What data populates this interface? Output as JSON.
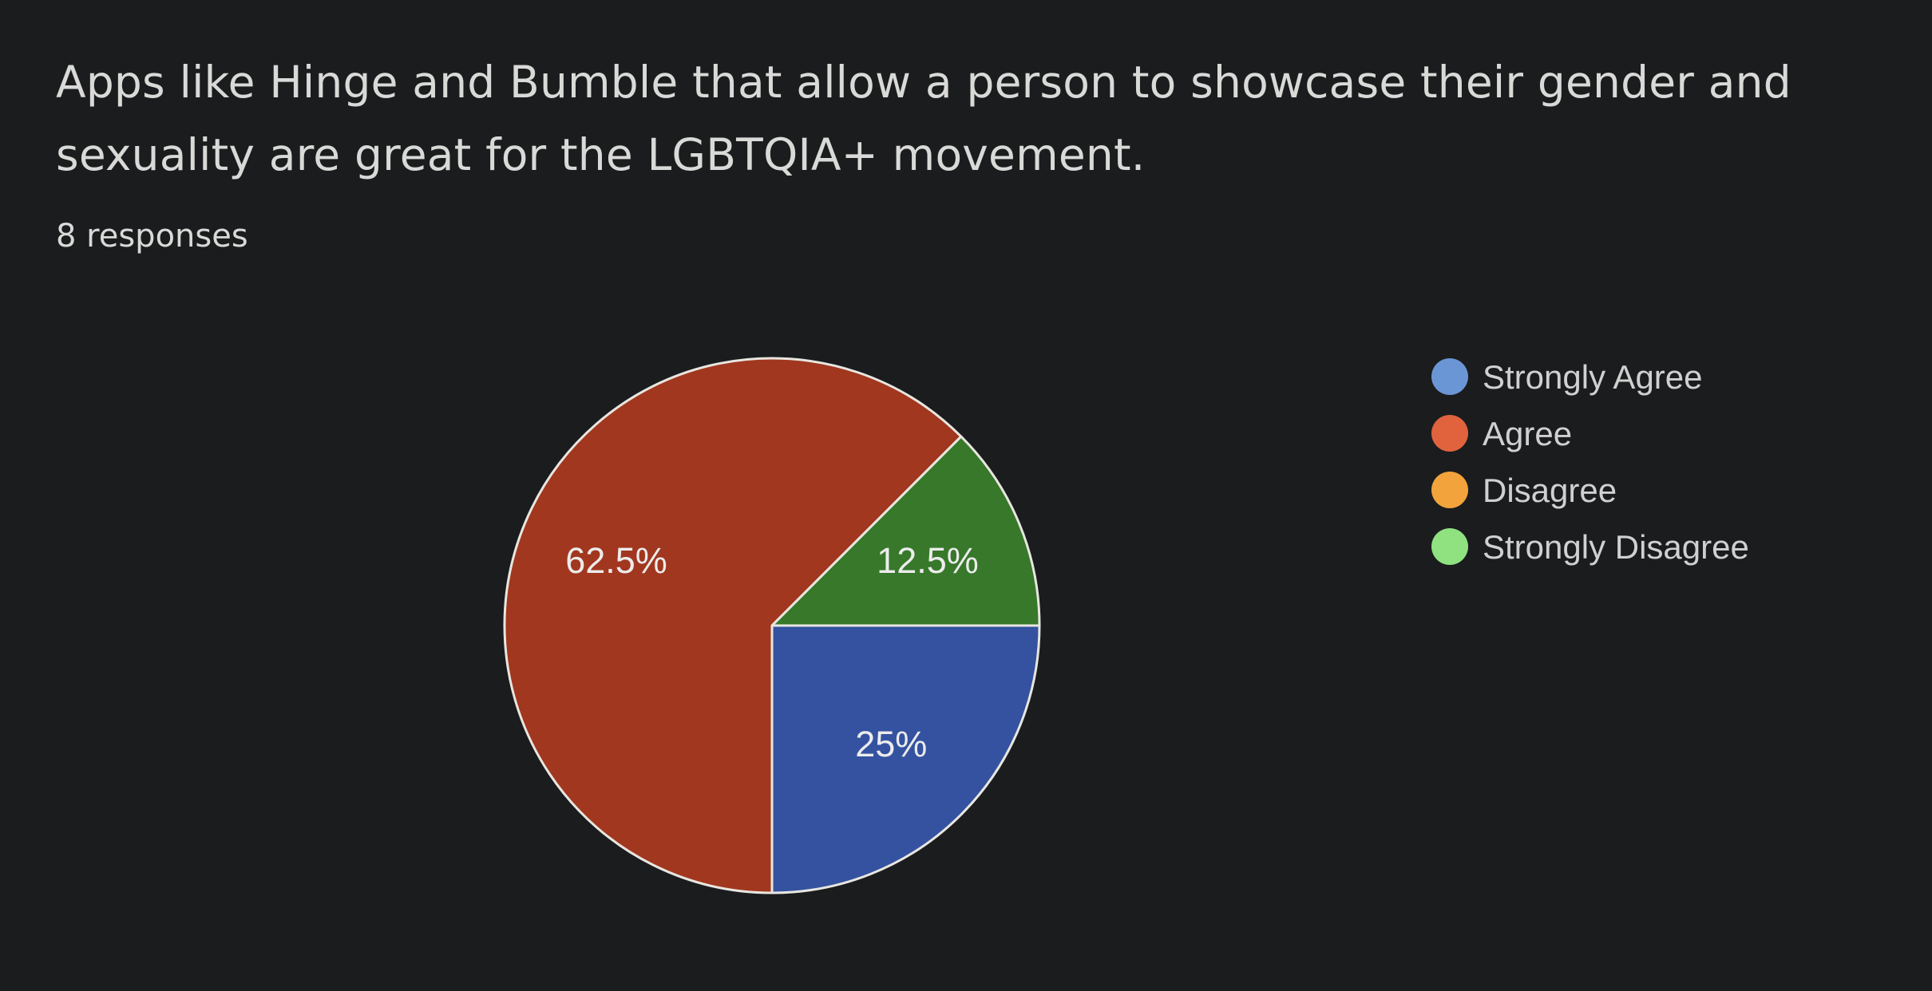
{
  "question": {
    "title": "Apps like Hinge and Bumble that allow a person to showcase their gender and sexuality are great for the LGBTQIA+ movement.",
    "response_count": "8 responses"
  },
  "chart_data": {
    "type": "pie",
    "title": "",
    "total_responses": 8,
    "slices": [
      {
        "label": "Strongly Agree",
        "value": 25,
        "display": "25%",
        "color": "#3452a0",
        "legend_color": "#6b96d6"
      },
      {
        "label": "Agree",
        "value": 62.5,
        "display": "62.5%",
        "color": "#a1371f",
        "legend_color": "#e0633e"
      },
      {
        "label": "Disagree",
        "value": 0,
        "display": "",
        "color": "#c98a2a",
        "legend_color": "#f2a33c"
      },
      {
        "label": "Strongly Disagree",
        "value": 12.5,
        "display": "12.5%",
        "color": "#37782a",
        "legend_color": "#8fe27f"
      }
    ],
    "start_angle_deg": 90,
    "direction": "clockwise",
    "legend_position": "right",
    "slice_border_color": "#e8e6e0"
  },
  "colors": {
    "background": "#1b1c1e",
    "text": "#d9d9d7"
  }
}
